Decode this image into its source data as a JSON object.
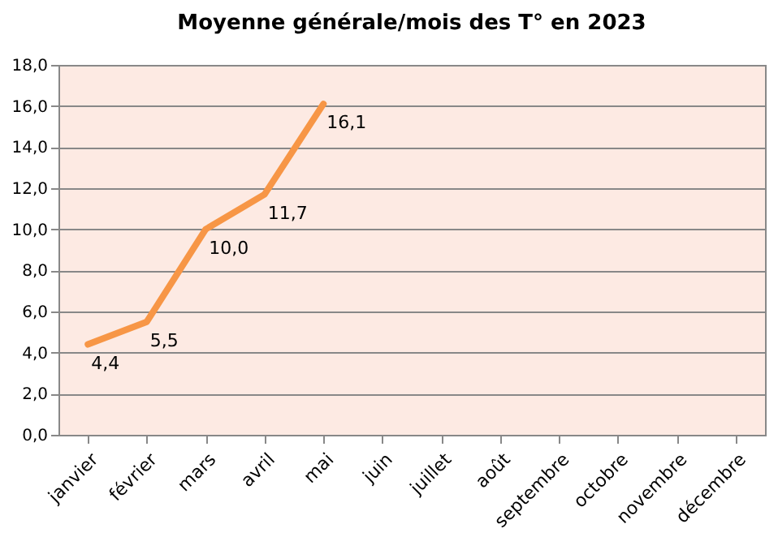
{
  "chart_data": {
    "type": "line",
    "title": "Moyenne générale/mois des T° en 2023",
    "categories": [
      "janvier",
      "février",
      "mars",
      "avril",
      "mai",
      "juin",
      "juillet",
      "août",
      "septembre",
      "octobre",
      "novembre",
      "décembre"
    ],
    "series": [
      {
        "color": "#f79646",
        "values": [
          4.4,
          5.5,
          10.0,
          11.7,
          16.1,
          null,
          null,
          null,
          null,
          null,
          null,
          null
        ],
        "value_labels": [
          "4,4",
          "5,5",
          "10,0",
          "11,7",
          "16,1",
          null,
          null,
          null,
          null,
          null,
          null,
          null
        ]
      }
    ],
    "ylim": [
      0,
      18
    ],
    "yticks": [
      {
        "value": 0,
        "label": "0,0"
      },
      {
        "value": 2,
        "label": "2,0"
      },
      {
        "value": 4,
        "label": "4,0"
      },
      {
        "value": 6,
        "label": "6,0"
      },
      {
        "value": 8,
        "label": "8,0"
      },
      {
        "value": 10,
        "label": "10,0"
      },
      {
        "value": 12,
        "label": "12,0"
      },
      {
        "value": 14,
        "label": "14,0"
      },
      {
        "value": 16,
        "label": "16,0"
      },
      {
        "value": 18,
        "label": "18,0"
      }
    ],
    "grid": "y",
    "legend": false,
    "marker": "none",
    "line_style": "solid"
  }
}
